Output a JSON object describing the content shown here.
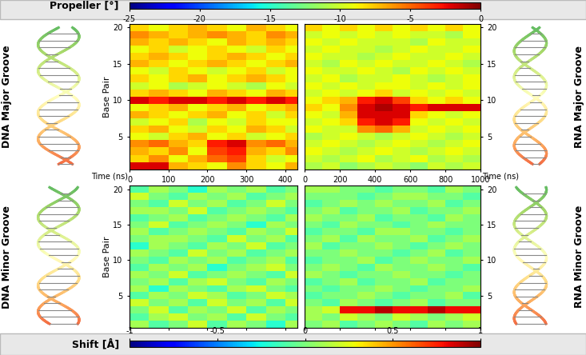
{
  "chart_data": [
    {
      "type": "heatmap",
      "title": "DNA Major Groove",
      "x_label": "Time (ns)",
      "y_label": "Base Pair",
      "x_edges": [
        0,
        50,
        100,
        150,
        200,
        250,
        300,
        350,
        400,
        430
      ],
      "base_pairs": [
        1,
        2,
        3,
        4,
        5,
        6,
        7,
        8,
        9,
        10,
        11,
        12,
        13,
        14,
        15,
        16,
        17,
        18,
        19,
        20
      ],
      "xlim": [
        0,
        430
      ],
      "xticks": [
        0,
        100,
        200,
        300,
        400
      ],
      "ylim": [
        0.5,
        20.5
      ],
      "yticks": [
        5,
        10,
        15,
        20
      ],
      "color_bar": {
        "label": "Propeller [°]",
        "range": [
          -25,
          0
        ],
        "ticks": [
          -25,
          -20,
          -15,
          -10,
          -5,
          0
        ]
      },
      "cells": [
        [
          -2,
          -2,
          -7,
          -8,
          -9,
          -6,
          -8,
          -9,
          -7
        ],
        [
          -8,
          -6,
          -9,
          -7,
          -5,
          -4,
          -8,
          -10,
          -9
        ],
        [
          -7,
          -8,
          -6,
          -9,
          -4,
          -3,
          -7,
          -8,
          -6
        ],
        [
          -6,
          -5,
          -7,
          -8,
          -3,
          -2,
          -6,
          -5,
          -7
        ],
        [
          -9,
          -10,
          -8,
          -7,
          -9,
          -8,
          -10,
          -9,
          -8
        ],
        [
          -8,
          -7,
          -9,
          -10,
          -8,
          -9,
          -7,
          -8,
          -10
        ],
        [
          -10,
          -9,
          -8,
          -11,
          -9,
          -10,
          -8,
          -9,
          -9
        ],
        [
          -7,
          -8,
          -9,
          -8,
          -7,
          -9,
          -8,
          -10,
          -8
        ],
        [
          -9,
          -8,
          -7,
          -9,
          -8,
          -7,
          -9,
          -8,
          -7
        ],
        [
          -2,
          -3,
          -2,
          -2,
          -3,
          -2,
          -3,
          -2,
          -3
        ],
        [
          -8,
          -7,
          -8,
          -9,
          -7,
          -8,
          -9,
          -7,
          -8
        ],
        [
          -10,
          -9,
          -11,
          -10,
          -9,
          -10,
          -11,
          -9,
          -10
        ],
        [
          -8,
          -9,
          -8,
          -7,
          -9,
          -8,
          -7,
          -8,
          -9
        ],
        [
          -9,
          -10,
          -8,
          -9,
          -10,
          -9,
          -8,
          -10,
          -9
        ],
        [
          -7,
          -8,
          -9,
          -8,
          -7,
          -8,
          -9,
          -8,
          -7
        ],
        [
          -8,
          -7,
          -8,
          -9,
          -8,
          -7,
          -8,
          -9,
          -8
        ],
        [
          -9,
          -8,
          -10,
          -9,
          -8,
          -9,
          -10,
          -8,
          -9
        ],
        [
          -7,
          -8,
          -7,
          -8,
          -9,
          -7,
          -8,
          -7,
          -8
        ],
        [
          -6,
          -7,
          -8,
          -7,
          -6,
          -7,
          -8,
          -6,
          -7
        ],
        [
          -8,
          -9,
          -8,
          -7,
          -8,
          -9,
          -7,
          -8,
          -9
        ]
      ]
    },
    {
      "type": "heatmap",
      "title": "RNA Major Groove",
      "x_label": "Time (ns)",
      "x_edges": [
        0,
        100,
        200,
        300,
        400,
        500,
        600,
        700,
        800,
        900,
        1000
      ],
      "base_pairs": [
        1,
        2,
        3,
        4,
        5,
        6,
        7,
        8,
        9,
        10,
        11,
        12,
        13,
        14,
        15,
        16,
        17,
        18,
        19,
        20
      ],
      "xlim": [
        0,
        1000
      ],
      "xticks": [
        0,
        200,
        400,
        600,
        800,
        1000
      ],
      "ylim": [
        0.5,
        20.5
      ],
      "yticks": [
        5,
        10,
        15,
        20
      ],
      "color_bar": {
        "label": "Propeller [°]",
        "range": [
          -25,
          0
        ],
        "ticks": [
          -25,
          -20,
          -15,
          -10,
          -5,
          0
        ]
      },
      "cells": [
        [
          -11,
          -10,
          -12,
          -11,
          -10,
          -11,
          -12,
          -10,
          -11,
          -10
        ],
        [
          -10,
          -11,
          -10,
          -9,
          -11,
          -10,
          -9,
          -11,
          -10,
          -11
        ],
        [
          -9,
          -10,
          -11,
          -10,
          -9,
          -10,
          -11,
          -10,
          -9,
          -10
        ],
        [
          -10,
          -9,
          -10,
          -11,
          -10,
          -9,
          -10,
          -11,
          -10,
          -9
        ],
        [
          -11,
          -10,
          -9,
          -10,
          -11,
          -10,
          -9,
          -10,
          -11,
          -10
        ],
        [
          -9,
          -10,
          -10,
          -6,
          -5,
          -7,
          -10,
          -9,
          -10,
          -9
        ],
        [
          -10,
          -9,
          -8,
          -3,
          -2,
          -3,
          -9,
          -10,
          -9,
          -10
        ],
        [
          -9,
          -10,
          -7,
          -2,
          -2,
          -2,
          -8,
          -9,
          -10,
          -9
        ],
        [
          -8,
          -9,
          -6,
          -2,
          -1,
          -2,
          -3,
          -2,
          -2,
          -2
        ],
        [
          -9,
          -8,
          -7,
          -3,
          -2,
          -4,
          -8,
          -9,
          -8,
          -9
        ],
        [
          -10,
          -9,
          -10,
          -9,
          -8,
          -10,
          -9,
          -10,
          -9,
          -10
        ],
        [
          -9,
          -10,
          -9,
          -10,
          -9,
          -9,
          -10,
          -9,
          -10,
          -9
        ],
        [
          -10,
          -9,
          -11,
          -10,
          -10,
          -9,
          -10,
          -11,
          -10,
          -9
        ],
        [
          -9,
          -10,
          -10,
          -9,
          -10,
          -11,
          -9,
          -10,
          -9,
          -10
        ],
        [
          -10,
          -11,
          -9,
          -10,
          -9,
          -10,
          -10,
          -9,
          -10,
          -11
        ],
        [
          -9,
          -10,
          -10,
          -11,
          -10,
          -9,
          -10,
          -10,
          -9,
          -10
        ],
        [
          -10,
          -9,
          -10,
          -10,
          -11,
          -10,
          -9,
          -10,
          -10,
          -9
        ],
        [
          -9,
          -10,
          -9,
          -10,
          -10,
          -10,
          -11,
          -9,
          -10,
          -10
        ],
        [
          -10,
          -9,
          -10,
          -9,
          -10,
          -9,
          -10,
          -10,
          -11,
          -9
        ],
        [
          -8,
          -9,
          -8,
          -9,
          -8,
          -9,
          -8,
          -9,
          -8,
          -9
        ]
      ]
    },
    {
      "type": "heatmap",
      "title": "DNA Minor Groove",
      "y_label": "Base Pair",
      "tick_labels": "y",
      "x_edges": [
        0,
        50,
        100,
        150,
        200,
        250,
        300,
        350,
        400,
        430
      ],
      "base_pairs": [
        1,
        2,
        3,
        4,
        5,
        6,
        7,
        8,
        9,
        10,
        11,
        12,
        13,
        14,
        15,
        16,
        17,
        18,
        19,
        20
      ],
      "xlim": [
        0,
        430
      ],
      "xticks": [
        0,
        100,
        200,
        300,
        400
      ],
      "ylim": [
        0.5,
        20.5
      ],
      "yticks": [
        5,
        10,
        15,
        20
      ],
      "color_bar": {
        "label": "Shift [Å]",
        "range": [
          -1,
          1
        ],
        "ticks": [
          -1,
          -0.5,
          0,
          0.5,
          1
        ]
      },
      "cells": [
        [
          0.1,
          -0.1,
          0.0,
          0.2,
          -0.1,
          0.1,
          0.0,
          -0.2,
          0.1
        ],
        [
          -0.1,
          0.1,
          0.2,
          0.0,
          0.1,
          -0.1,
          0.2,
          0.0,
          -0.1
        ],
        [
          0.0,
          0.2,
          -0.1,
          0.1,
          0.0,
          0.2,
          -0.1,
          0.1,
          0.0
        ],
        [
          0.2,
          0.0,
          0.1,
          -0.1,
          0.2,
          0.0,
          0.1,
          -0.1,
          0.2
        ],
        [
          -0.1,
          0.1,
          0.0,
          0.2,
          0.1,
          -0.1,
          0.0,
          0.2,
          0.1
        ],
        [
          0.1,
          -0.2,
          0.1,
          0.0,
          -0.1,
          0.1,
          0.2,
          0.0,
          -0.1
        ],
        [
          0.0,
          0.1,
          -0.1,
          0.1,
          0.2,
          0.0,
          -0.1,
          0.1,
          0.0
        ],
        [
          0.1,
          0.0,
          0.2,
          -0.1,
          0.0,
          0.1,
          0.0,
          -0.1,
          0.2
        ],
        [
          -0.1,
          0.1,
          0.0,
          0.1,
          -0.2,
          0.0,
          0.1,
          0.2,
          0.0
        ],
        [
          0.0,
          -0.1,
          0.1,
          0.0,
          0.1,
          -0.1,
          0.0,
          0.1,
          -0.1
        ],
        [
          0.1,
          0.0,
          -0.1,
          0.2,
          0.0,
          0.1,
          -0.1,
          0.0,
          0.1
        ],
        [
          -0.2,
          0.1,
          0.0,
          -0.1,
          0.1,
          0.0,
          0.2,
          -0.1,
          0.0
        ],
        [
          0.0,
          0.1,
          0.1,
          0.0,
          -0.1,
          0.2,
          0.0,
          0.1,
          -0.1
        ],
        [
          0.1,
          -0.1,
          0.0,
          0.1,
          0.0,
          -0.1,
          0.1,
          0.0,
          0.2
        ],
        [
          0.0,
          0.2,
          -0.1,
          0.0,
          0.1,
          0.0,
          -0.2,
          0.1,
          0.0
        ],
        [
          -0.1,
          0.0,
          0.1,
          -0.1,
          0.0,
          0.1,
          0.0,
          -0.1,
          0.1
        ],
        [
          0.1,
          0.1,
          0.0,
          0.2,
          -0.1,
          0.0,
          0.1,
          0.0,
          -0.1
        ],
        [
          0.0,
          -0.1,
          0.2,
          0.0,
          0.1,
          -0.1,
          0.0,
          0.2,
          0.0
        ],
        [
          0.2,
          0.0,
          -0.1,
          0.1,
          0.0,
          0.1,
          -0.1,
          0.0,
          0.1
        ],
        [
          -0.1,
          0.1,
          0.0,
          -0.2,
          0.1,
          0.0,
          0.1,
          -0.1,
          0.0
        ]
      ]
    },
    {
      "type": "heatmap",
      "title": "RNA Minor Groove",
      "tick_labels": "y",
      "x_edges": [
        0,
        100,
        200,
        300,
        400,
        500,
        600,
        700,
        800,
        900,
        1000
      ],
      "base_pairs": [
        1,
        2,
        3,
        4,
        5,
        6,
        7,
        8,
        9,
        10,
        11,
        12,
        13,
        14,
        15,
        16,
        17,
        18,
        19,
        20
      ],
      "xlim": [
        0,
        1000
      ],
      "xticks": [
        0,
        200,
        400,
        600,
        800,
        1000
      ],
      "ylim": [
        0.5,
        20.5
      ],
      "yticks": [
        5,
        10,
        15,
        20
      ],
      "color_bar": {
        "label": "Shift [Å]",
        "range": [
          -1,
          1
        ],
        "ticks": [
          -1,
          -0.5,
          0,
          0.5,
          1
        ]
      },
      "cells": [
        [
          0.0,
          0.1,
          -0.1,
          0.0,
          0.1,
          0.0,
          -0.1,
          0.1,
          0.0,
          0.1
        ],
        [
          0.1,
          0.0,
          0.2,
          0.1,
          0.0,
          0.2,
          0.1,
          0.0,
          0.1,
          0.2
        ],
        [
          0.1,
          0.2,
          0.8,
          0.8,
          0.9,
          0.8,
          0.8,
          0.9,
          0.8,
          0.8
        ],
        [
          0.0,
          -0.1,
          0.1,
          0.0,
          -0.1,
          0.0,
          0.1,
          -0.1,
          0.0,
          0.0
        ],
        [
          -0.1,
          0.0,
          0.0,
          0.1,
          0.0,
          -0.1,
          0.0,
          0.0,
          0.1,
          -0.1
        ],
        [
          0.0,
          -0.1,
          0.0,
          0.0,
          0.1,
          0.0,
          -0.1,
          0.0,
          0.0,
          0.1
        ],
        [
          -0.1,
          0.0,
          0.1,
          -0.1,
          0.0,
          0.0,
          0.1,
          -0.1,
          0.0,
          0.0
        ],
        [
          0.1,
          0.0,
          -0.1,
          0.0,
          0.0,
          0.1,
          0.0,
          0.0,
          -0.1,
          0.0
        ],
        [
          0.0,
          0.1,
          0.0,
          -0.1,
          0.1,
          0.0,
          0.0,
          0.1,
          0.0,
          -0.1
        ],
        [
          -0.1,
          0.0,
          0.0,
          0.1,
          -0.1,
          0.0,
          0.1,
          0.0,
          0.0,
          0.1
        ],
        [
          0.0,
          0.0,
          0.1,
          0.0,
          0.0,
          -0.1,
          0.0,
          0.1,
          -0.1,
          0.0
        ],
        [
          0.1,
          -0.1,
          0.0,
          0.0,
          0.1,
          0.0,
          -0.1,
          0.0,
          0.1,
          0.0
        ],
        [
          0.0,
          0.1,
          -0.1,
          0.1,
          0.0,
          0.0,
          0.1,
          -0.1,
          0.0,
          0.1
        ],
        [
          -0.1,
          0.0,
          0.0,
          -0.1,
          0.1,
          0.1,
          0.0,
          0.0,
          -0.1,
          0.0
        ],
        [
          0.0,
          -0.1,
          0.1,
          0.0,
          0.0,
          -0.1,
          0.0,
          0.1,
          0.0,
          0.0
        ],
        [
          0.1,
          0.0,
          0.0,
          0.1,
          -0.1,
          0.0,
          0.0,
          -0.1,
          0.1,
          0.0
        ],
        [
          0.0,
          0.1,
          -0.1,
          0.0,
          0.0,
          0.1,
          -0.1,
          0.0,
          0.0,
          0.1
        ],
        [
          -0.1,
          0.0,
          0.1,
          0.0,
          0.1,
          0.0,
          0.0,
          0.1,
          -0.1,
          0.0
        ],
        [
          0.0,
          0.0,
          0.0,
          -0.1,
          0.0,
          0.1,
          0.1,
          0.0,
          0.0,
          -0.1
        ],
        [
          0.1,
          0.1,
          0.0,
          0.0,
          -0.1,
          0.0,
          0.0,
          -0.1,
          0.1,
          0.0
        ]
      ]
    }
  ]
}
